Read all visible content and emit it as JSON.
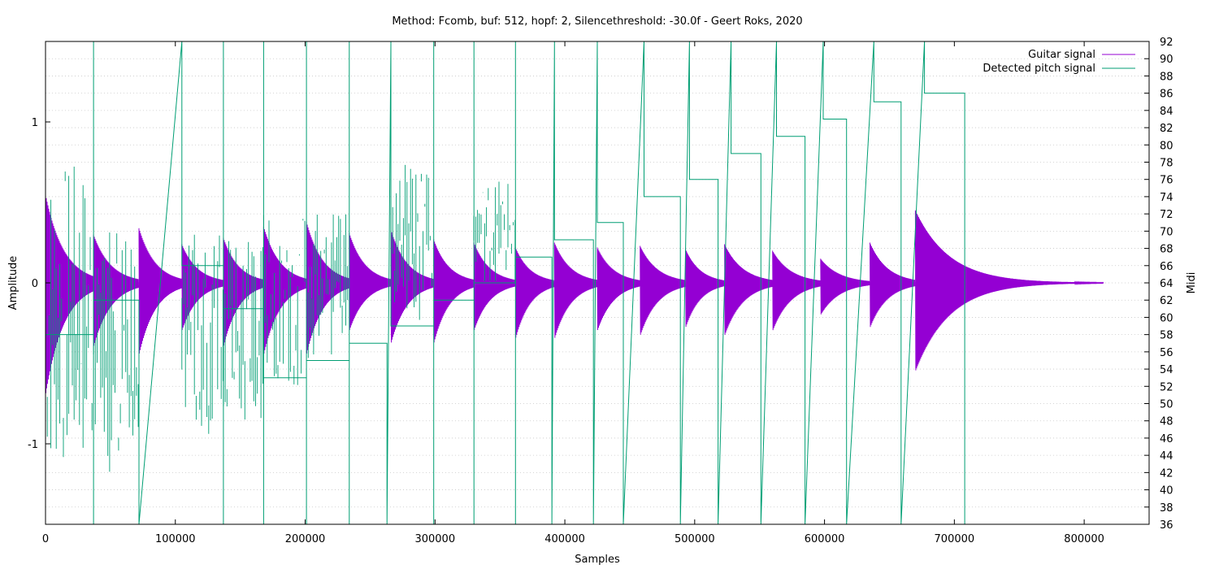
{
  "chart_data": {
    "type": "line",
    "title": "Method: Fcomb, buf: 512, hopf: 2, Silencethreshold: -30.0f - Geert Roks, 2020",
    "xlabel": "Samples",
    "ylabel": "Amplitude",
    "y2label": "Midi",
    "xlim": [
      0,
      850000
    ],
    "ylim": [
      -1.5,
      1.5
    ],
    "y2lim": [
      36,
      92
    ],
    "grid": true,
    "legend_position": "top-right",
    "x_ticks": [
      "0",
      "100000",
      "200000",
      "300000",
      "400000",
      "500000",
      "600000",
      "700000",
      "800000"
    ],
    "x_tick_values": [
      0,
      100000,
      200000,
      300000,
      400000,
      500000,
      600000,
      700000,
      800000
    ],
    "y_ticks": [
      "-1",
      "0",
      "1"
    ],
    "y_tick_values": [
      -1,
      0,
      1
    ],
    "y2_ticks": [
      "36",
      "38",
      "40",
      "42",
      "44",
      "46",
      "48",
      "50",
      "52",
      "54",
      "56",
      "58",
      "60",
      "62",
      "64",
      "66",
      "68",
      "70",
      "72",
      "74",
      "76",
      "78",
      "80",
      "82",
      "84",
      "86",
      "88",
      "90",
      "92"
    ],
    "y2_tick_values": [
      36,
      38,
      40,
      42,
      44,
      46,
      48,
      50,
      52,
      54,
      56,
      58,
      60,
      62,
      64,
      66,
      68,
      70,
      72,
      74,
      76,
      78,
      80,
      82,
      84,
      86,
      88,
      90,
      92
    ],
    "series": [
      {
        "name": "Guitar signal",
        "color": "#9400d3",
        "axis": "left",
        "note_envelopes": [
          {
            "start": 0,
            "end": 37000,
            "peak": 0.55,
            "neg": -0.7
          },
          {
            "start": 37000,
            "end": 72000,
            "peak": 0.3,
            "neg": -0.4
          },
          {
            "start": 72000,
            "end": 105000,
            "peak": 0.34,
            "neg": -0.45
          },
          {
            "start": 105000,
            "end": 137000,
            "peak": 0.24,
            "neg": -0.3
          },
          {
            "start": 137000,
            "end": 168000,
            "peak": 0.28,
            "neg": -0.4
          },
          {
            "start": 168000,
            "end": 201000,
            "peak": 0.35,
            "neg": -0.45
          },
          {
            "start": 201000,
            "end": 234000,
            "peak": 0.38,
            "neg": -0.45
          },
          {
            "start": 234000,
            "end": 266000,
            "peak": 0.31,
            "neg": -0.3
          },
          {
            "start": 266000,
            "end": 299000,
            "peak": 0.33,
            "neg": -0.38
          },
          {
            "start": 299000,
            "end": 330000,
            "peak": 0.27,
            "neg": -0.38
          },
          {
            "start": 330000,
            "end": 362000,
            "peak": 0.25,
            "neg": -0.3
          },
          {
            "start": 362000,
            "end": 392000,
            "peak": 0.22,
            "neg": -0.35
          },
          {
            "start": 392000,
            "end": 425000,
            "peak": 0.25,
            "neg": -0.35
          },
          {
            "start": 425000,
            "end": 458000,
            "peak": 0.22,
            "neg": -0.3
          },
          {
            "start": 458000,
            "end": 493000,
            "peak": 0.23,
            "neg": -0.33
          },
          {
            "start": 493000,
            "end": 523000,
            "peak": 0.21,
            "neg": -0.28
          },
          {
            "start": 523000,
            "end": 560000,
            "peak": 0.24,
            "neg": -0.33
          },
          {
            "start": 560000,
            "end": 597000,
            "peak": 0.2,
            "neg": -0.3
          },
          {
            "start": 597000,
            "end": 635000,
            "peak": 0.15,
            "neg": -0.2
          },
          {
            "start": 635000,
            "end": 670000,
            "peak": 0.25,
            "neg": -0.28
          },
          {
            "start": 670000,
            "end": 815000,
            "peak": 0.45,
            "neg": -0.55
          }
        ]
      },
      {
        "name": "Detected pitch signal",
        "color": "#009e73",
        "axis": "right",
        "plateaus": [
          {
            "start": 0,
            "end": 37000,
            "midi": 58
          },
          {
            "start": 37000,
            "end": 72000,
            "midi": 62
          },
          {
            "start": 105000,
            "end": 137000,
            "midi": 66
          },
          {
            "start": 137000,
            "end": 168000,
            "midi": 61
          },
          {
            "start": 168000,
            "end": 201000,
            "midi": 53
          },
          {
            "start": 201000,
            "end": 234000,
            "midi": 55
          },
          {
            "start": 234000,
            "end": 263000,
            "midi": 57
          },
          {
            "start": 266000,
            "end": 299000,
            "midi": 59
          },
          {
            "start": 299000,
            "end": 330000,
            "midi": 62
          },
          {
            "start": 330000,
            "end": 362000,
            "midi": 64
          },
          {
            "start": 362000,
            "end": 390000,
            "midi": 67
          },
          {
            "start": 392000,
            "end": 422000,
            "midi": 69
          },
          {
            "start": 425000,
            "end": 445000,
            "midi": 71
          },
          {
            "start": 461000,
            "end": 489000,
            "midi": 74
          },
          {
            "start": 496000,
            "end": 518000,
            "midi": 76
          },
          {
            "start": 528000,
            "end": 551000,
            "midi": 79
          },
          {
            "start": 563000,
            "end": 585000,
            "midi": 81
          },
          {
            "start": 599000,
            "end": 617000,
            "midi": 83
          },
          {
            "start": 638000,
            "end": 659000,
            "midi": 85
          },
          {
            "start": 677000,
            "end": 708000,
            "midi": 86
          }
        ]
      }
    ]
  }
}
